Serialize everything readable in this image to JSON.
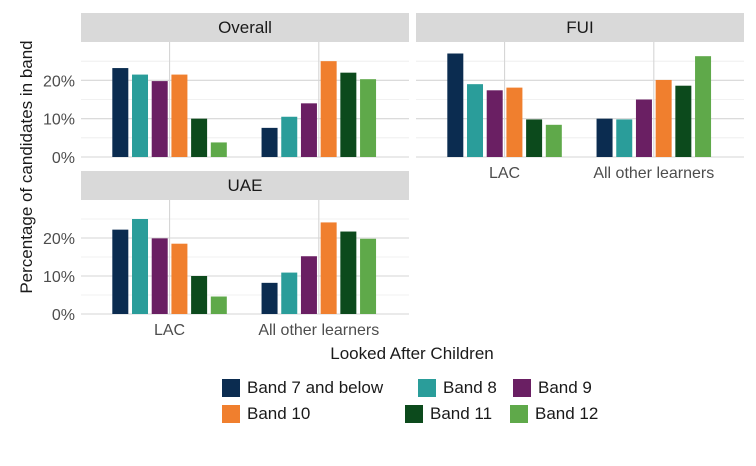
{
  "chart_data": {
    "type": "bar",
    "ylabel": "Percentage of candidates in band",
    "xlabel": "Looked After Children",
    "categories": [
      "LAC",
      "All other learners"
    ],
    "ylim": [
      0,
      30
    ],
    "yticks": [
      0,
      10,
      20
    ],
    "ytick_labels": [
      "0%",
      "10%",
      "20%"
    ],
    "bands": [
      "Band 7 and below",
      "Band 8",
      "Band 9",
      "Band 10",
      "Band 11",
      "Band 12"
    ],
    "colors": [
      "#0b2c50",
      "#2a9d9a",
      "#6a1f63",
      "#f07f2e",
      "#0c4a1c",
      "#5fa94a"
    ],
    "facets": [
      {
        "title": "Overall",
        "values": {
          "LAC": [
            23.2,
            21.5,
            19.8,
            21.5,
            10.0,
            3.8
          ],
          "All other learners": [
            7.6,
            10.5,
            14.0,
            25.0,
            22.0,
            20.3
          ]
        }
      },
      {
        "title": "FUI",
        "values": {
          "LAC": [
            27.0,
            19.0,
            17.4,
            18.1,
            9.8,
            8.4
          ],
          "All other learners": [
            10.0,
            9.8,
            15.0,
            20.1,
            18.6,
            26.3
          ]
        }
      },
      {
        "title": "UAE",
        "values": {
          "LAC": [
            22.2,
            25.0,
            19.9,
            18.5,
            10.0,
            4.6
          ],
          "All other learners": [
            8.2,
            10.9,
            15.2,
            24.1,
            21.7,
            19.8
          ]
        }
      }
    ],
    "legend": {
      "position": "bottom",
      "items": [
        "Band 7 and below",
        "Band 8",
        "Band 9",
        "Band 10",
        "Band 11",
        "Band 12"
      ]
    },
    "grid": true
  }
}
